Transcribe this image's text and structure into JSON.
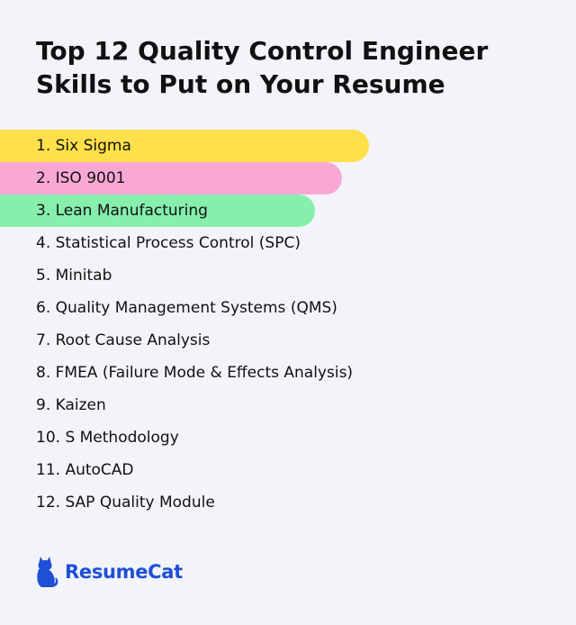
{
  "title": {
    "line1": "Top 12 Quality Control Engineer",
    "line2": "Skills to Put on Your Resume"
  },
  "skills": [
    {
      "label": "1. Six Sigma",
      "highlight": "#ffe04a"
    },
    {
      "label": "2. ISO 9001",
      "highlight": "#f9a8d4"
    },
    {
      "label": "3. Lean Manufacturing",
      "highlight": "#86efac"
    },
    {
      "label": "4. Statistical Process Control (SPC)"
    },
    {
      "label": "5. Minitab"
    },
    {
      "label": "6. Quality Management Systems (QMS)"
    },
    {
      "label": "7. Root Cause Analysis"
    },
    {
      "label": "8. FMEA (Failure Mode & Effects Analysis)"
    },
    {
      "label": "9. Kaizen"
    },
    {
      "label": "10. S Methodology"
    },
    {
      "label": "11. AutoCAD"
    },
    {
      "label": "12. SAP Quality Module"
    }
  ],
  "brand": {
    "name": "ResumeCat",
    "icon": "cat-icon",
    "color": "#1e4fd6"
  }
}
